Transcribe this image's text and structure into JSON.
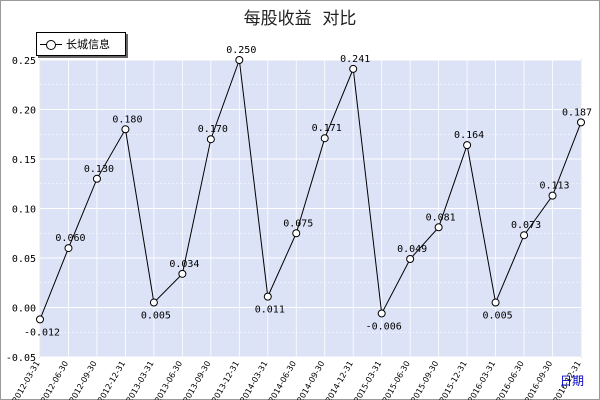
{
  "title": "每股收益  对比",
  "chart_data": {
    "type": "line",
    "title": "每股收益  对比",
    "xlabel": "日期",
    "ylabel": "",
    "ylim": [
      -0.05,
      0.25
    ],
    "yticks": [
      "0.25",
      "0.20",
      "0.15",
      "0.10",
      "0.05",
      "0.00",
      "-0.05"
    ],
    "categories": [
      "2012-03-31",
      "2012-06-30",
      "2012-09-30",
      "2012-12-31",
      "2013-03-31",
      "2013-06-30",
      "2013-09-30",
      "2013-12-31",
      "2014-03-31",
      "2014-06-30",
      "2014-09-30",
      "2014-12-31",
      "2015-03-31",
      "2015-06-30",
      "2015-09-30",
      "2015-12-31",
      "2016-03-31",
      "2016-06-30",
      "2016-09-30",
      "2016-12-31"
    ],
    "series": [
      {
        "name": "长城信息",
        "values": [
          -0.012,
          0.06,
          0.13,
          0.18,
          0.005,
          0.034,
          0.17,
          0.25,
          0.011,
          0.075,
          0.171,
          0.241,
          -0.006,
          0.049,
          0.081,
          0.164,
          0.005,
          0.073,
          0.113,
          0.187
        ],
        "labels": [
          "-0.012",
          "0.060",
          "0.130",
          "0.180",
          "0.005",
          "0.034",
          "0.170",
          "0.250",
          "0.011",
          "0.075",
          "0.171",
          "0.241",
          "-0.006",
          "0.049",
          "0.081",
          "0.164",
          "0.005",
          "0.073",
          "0.113",
          "0.187"
        ],
        "color": "#000000"
      }
    ],
    "plot_background": "#dde3f7",
    "grid": true,
    "legend": "top-left"
  }
}
